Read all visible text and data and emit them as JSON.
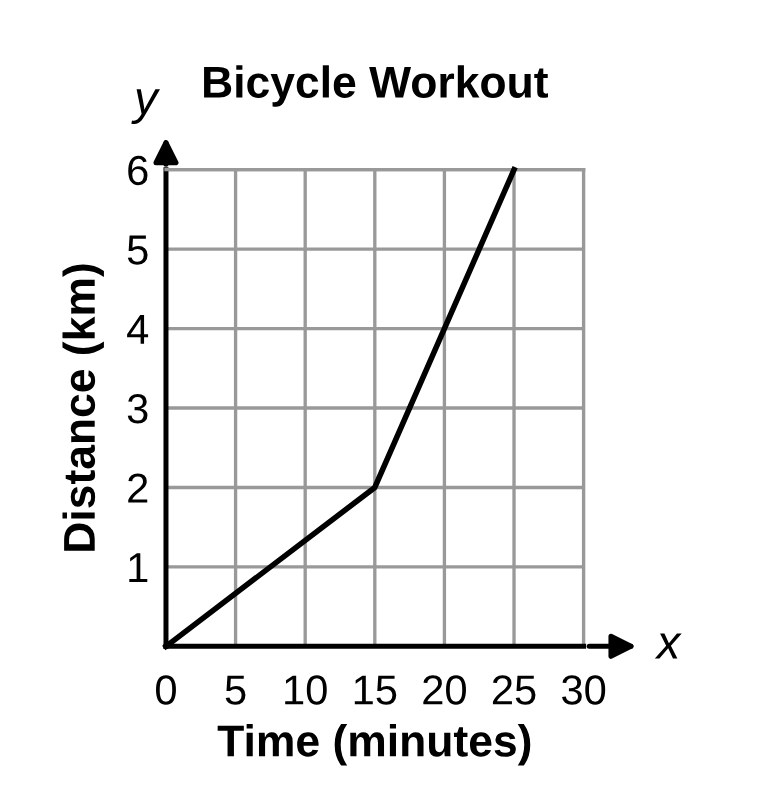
{
  "chart_data": {
    "type": "line",
    "title": "Bicycle Workout",
    "xlabel": "Time (minutes)",
    "ylabel": "Distance (km)",
    "x": [
      0,
      15,
      25
    ],
    "series": [
      {
        "color": "#000000",
        "values": [
          0,
          2,
          6
        ]
      }
    ],
    "xlim": [
      0,
      30
    ],
    "ylim": [
      0,
      6
    ],
    "xticks": [
      0,
      5,
      10,
      15,
      20,
      25,
      30
    ],
    "yticks": [
      {
        "value": 0,
        "label": null
      },
      1,
      2,
      3,
      4,
      5,
      6
    ],
    "grid": true,
    "marker": "none",
    "line_style": "solid",
    "annotations": [
      "x",
      "y"
    ]
  }
}
